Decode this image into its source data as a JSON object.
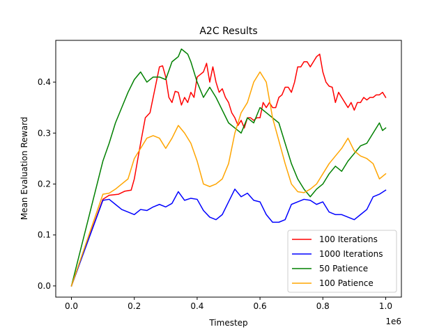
{
  "chart_data": {
    "type": "line",
    "title": "A2C Results",
    "xlabel": "Timestep",
    "ylabel": "Mean Evaluation Reward",
    "x_offset_text": "1e6",
    "xlim": [
      -0.05,
      1.05
    ],
    "ylim": [
      -0.022,
      0.482
    ],
    "x_ticks": [
      0.0,
      0.2,
      0.4,
      0.6,
      0.8,
      1.0
    ],
    "x_tick_labels": [
      "0.0",
      "0.2",
      "0.4",
      "0.6",
      "0.8",
      "1.0"
    ],
    "y_ticks": [
      0.0,
      0.1,
      0.2,
      0.3,
      0.4
    ],
    "y_tick_labels": [
      "0.0",
      "0.1",
      "0.2",
      "0.3",
      "0.4"
    ],
    "grid": false,
    "legend_position": "lower-right",
    "series": [
      {
        "name": "100 Iterations",
        "color": "#ff0000",
        "x": [
          0.0,
          0.1,
          0.12,
          0.15,
          0.17,
          0.19,
          0.2,
          0.22,
          0.235,
          0.25,
          0.27,
          0.28,
          0.29,
          0.3,
          0.31,
          0.32,
          0.33,
          0.34,
          0.35,
          0.36,
          0.37,
          0.38,
          0.39,
          0.4,
          0.41,
          0.42,
          0.43,
          0.44,
          0.45,
          0.46,
          0.47,
          0.48,
          0.49,
          0.5,
          0.51,
          0.52,
          0.53,
          0.54,
          0.55,
          0.56,
          0.57,
          0.58,
          0.59,
          0.6,
          0.61,
          0.62,
          0.63,
          0.64,
          0.65,
          0.66,
          0.67,
          0.68,
          0.69,
          0.7,
          0.71,
          0.72,
          0.73,
          0.74,
          0.75,
          0.76,
          0.77,
          0.78,
          0.79,
          0.8,
          0.81,
          0.82,
          0.83,
          0.84,
          0.85,
          0.86,
          0.87,
          0.88,
          0.89,
          0.9,
          0.91,
          0.92,
          0.93,
          0.94,
          0.95,
          0.96,
          0.97,
          0.98,
          0.99,
          1.0
        ],
        "y": [
          0.0,
          0.17,
          0.178,
          0.18,
          0.186,
          0.188,
          0.21,
          0.28,
          0.33,
          0.34,
          0.4,
          0.43,
          0.432,
          0.41,
          0.37,
          0.36,
          0.382,
          0.38,
          0.355,
          0.37,
          0.36,
          0.38,
          0.37,
          0.41,
          0.415,
          0.42,
          0.437,
          0.4,
          0.43,
          0.4,
          0.38,
          0.387,
          0.37,
          0.36,
          0.34,
          0.33,
          0.315,
          0.325,
          0.31,
          0.33,
          0.33,
          0.325,
          0.33,
          0.33,
          0.36,
          0.35,
          0.36,
          0.35,
          0.35,
          0.37,
          0.375,
          0.39,
          0.39,
          0.38,
          0.4,
          0.43,
          0.43,
          0.44,
          0.44,
          0.43,
          0.44,
          0.45,
          0.455,
          0.42,
          0.4,
          0.392,
          0.39,
          0.36,
          0.38,
          0.37,
          0.36,
          0.35,
          0.36,
          0.345,
          0.36,
          0.36,
          0.37,
          0.365,
          0.37,
          0.37,
          0.375,
          0.375,
          0.38,
          0.37
        ]
      },
      {
        "name": "1000 Iterations",
        "color": "#0000ff",
        "x": [
          0.0,
          0.1,
          0.12,
          0.14,
          0.16,
          0.18,
          0.2,
          0.22,
          0.24,
          0.26,
          0.28,
          0.3,
          0.32,
          0.34,
          0.36,
          0.38,
          0.4,
          0.42,
          0.44,
          0.46,
          0.48,
          0.5,
          0.52,
          0.54,
          0.56,
          0.58,
          0.6,
          0.62,
          0.64,
          0.66,
          0.68,
          0.7,
          0.72,
          0.74,
          0.76,
          0.78,
          0.8,
          0.82,
          0.84,
          0.86,
          0.88,
          0.9,
          0.92,
          0.94,
          0.96,
          0.98,
          1.0
        ],
        "y": [
          0.0,
          0.168,
          0.17,
          0.16,
          0.15,
          0.145,
          0.14,
          0.15,
          0.148,
          0.155,
          0.16,
          0.155,
          0.162,
          0.185,
          0.168,
          0.172,
          0.17,
          0.148,
          0.135,
          0.13,
          0.14,
          0.165,
          0.19,
          0.175,
          0.182,
          0.168,
          0.165,
          0.14,
          0.125,
          0.125,
          0.13,
          0.16,
          0.165,
          0.17,
          0.168,
          0.16,
          0.165,
          0.145,
          0.14,
          0.14,
          0.135,
          0.13,
          0.14,
          0.15,
          0.175,
          0.18,
          0.188
        ]
      },
      {
        "name": "50 Patience",
        "color": "#008000",
        "x": [
          0.0,
          0.1,
          0.12,
          0.14,
          0.16,
          0.18,
          0.2,
          0.22,
          0.24,
          0.26,
          0.28,
          0.3,
          0.32,
          0.34,
          0.35,
          0.36,
          0.37,
          0.38,
          0.4,
          0.42,
          0.44,
          0.46,
          0.48,
          0.5,
          0.52,
          0.54,
          0.56,
          0.58,
          0.6,
          0.62,
          0.64,
          0.66,
          0.68,
          0.7,
          0.72,
          0.74,
          0.76,
          0.78,
          0.8,
          0.82,
          0.84,
          0.86,
          0.88,
          0.9,
          0.92,
          0.94,
          0.96,
          0.98,
          0.99,
          1.0
        ],
        "y": [
          0.0,
          0.245,
          0.28,
          0.32,
          0.35,
          0.38,
          0.405,
          0.42,
          0.4,
          0.41,
          0.41,
          0.405,
          0.44,
          0.45,
          0.465,
          0.46,
          0.455,
          0.44,
          0.4,
          0.37,
          0.39,
          0.37,
          0.345,
          0.32,
          0.31,
          0.3,
          0.33,
          0.32,
          0.35,
          0.34,
          0.33,
          0.32,
          0.28,
          0.24,
          0.21,
          0.19,
          0.175,
          0.19,
          0.2,
          0.22,
          0.235,
          0.225,
          0.245,
          0.26,
          0.275,
          0.28,
          0.3,
          0.32,
          0.305,
          0.31
        ]
      },
      {
        "name": "100 Patience",
        "color": "#ffa500",
        "x": [
          0.0,
          0.1,
          0.12,
          0.14,
          0.16,
          0.18,
          0.2,
          0.22,
          0.24,
          0.26,
          0.28,
          0.3,
          0.32,
          0.34,
          0.36,
          0.38,
          0.4,
          0.42,
          0.44,
          0.46,
          0.48,
          0.5,
          0.52,
          0.54,
          0.56,
          0.58,
          0.6,
          0.62,
          0.64,
          0.66,
          0.68,
          0.7,
          0.72,
          0.74,
          0.76,
          0.78,
          0.8,
          0.82,
          0.84,
          0.86,
          0.88,
          0.9,
          0.92,
          0.94,
          0.96,
          0.98,
          1.0
        ],
        "y": [
          0.0,
          0.18,
          0.182,
          0.19,
          0.2,
          0.21,
          0.25,
          0.27,
          0.29,
          0.295,
          0.29,
          0.27,
          0.29,
          0.315,
          0.3,
          0.28,
          0.245,
          0.2,
          0.195,
          0.2,
          0.21,
          0.24,
          0.3,
          0.34,
          0.36,
          0.4,
          0.42,
          0.4,
          0.33,
          0.285,
          0.24,
          0.2,
          0.185,
          0.183,
          0.19,
          0.2,
          0.22,
          0.24,
          0.255,
          0.27,
          0.29,
          0.265,
          0.255,
          0.25,
          0.24,
          0.21,
          0.22
        ]
      }
    ]
  }
}
